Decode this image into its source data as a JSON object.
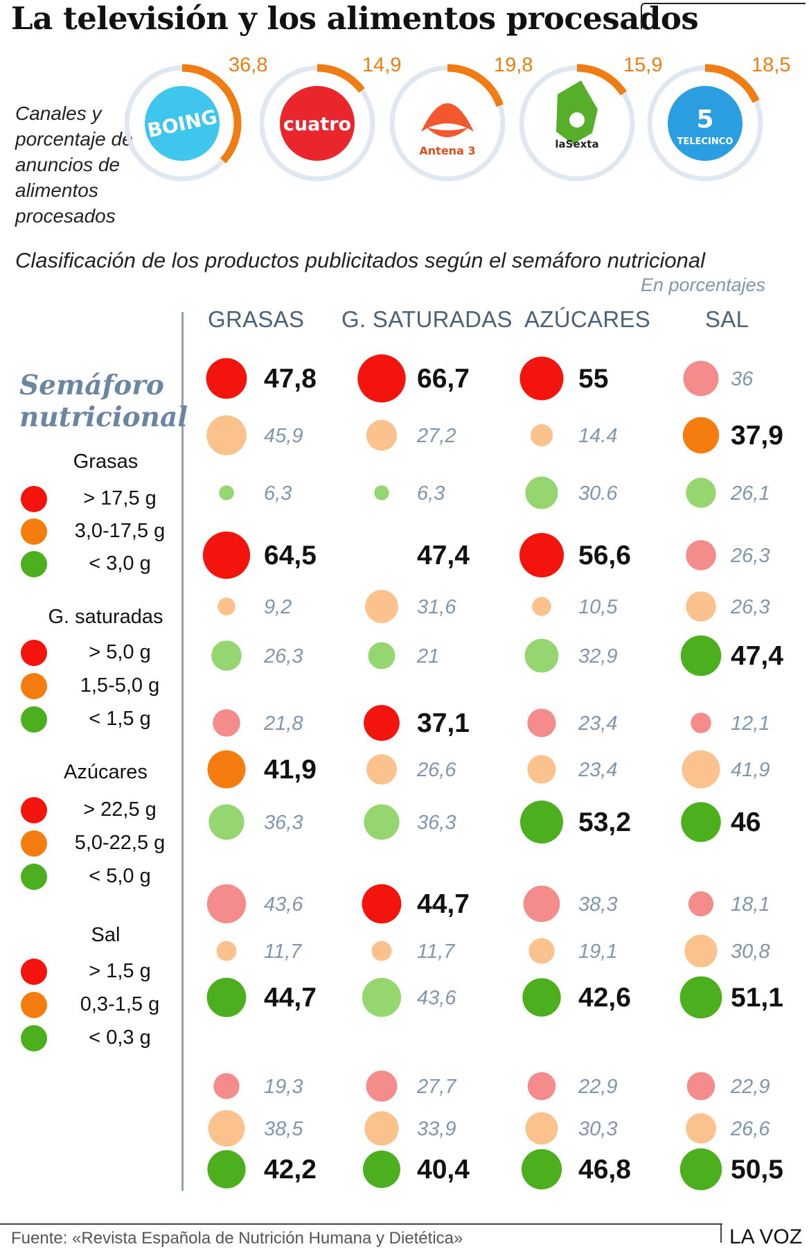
{
  "title": "La televisión y los alimentos procesados",
  "channels_label": "Canales y porcentaje de anuncios de alimentos procesados",
  "channels": [
    {
      "name": "Boing",
      "logo_text": "BOING",
      "value": "36,8",
      "pct": 36.8,
      "color": "#3ec6ec",
      "icon": "boing-logo"
    },
    {
      "name": "Cuatro",
      "logo_text": "cuatro",
      "value": "14,9",
      "pct": 14.9,
      "color": "#e8262b",
      "icon": "cuatro-logo"
    },
    {
      "name": "Antena 3",
      "logo_text": "Antena 3",
      "value": "19,8",
      "pct": 19.8,
      "color": "#f2572d",
      "icon": "antena3-logo"
    },
    {
      "name": "laSexta",
      "logo_text": "laSexta",
      "value": "15,9",
      "pct": 15.9,
      "color": "#57ae2b",
      "icon": "lasexta-logo"
    },
    {
      "name": "Telecinco",
      "logo_text": "TELECINCO",
      "value": "18,5",
      "pct": 18.5,
      "color": "#2a9ee0",
      "icon": "telecinco-logo"
    }
  ],
  "subtitle": "Clasificación de los productos publicitados según el semáforo nutricional",
  "units": "En porcentajes",
  "legend": {
    "title_line1": "Semáforo",
    "title_line2": "nutricional",
    "groups": [
      {
        "name": "Grasas",
        "items": [
          "> 17,5 g",
          "3,0-17,5 g",
          "< 3,0 g"
        ]
      },
      {
        "name": "G. saturadas",
        "items": [
          "> 5,0 g",
          "1,5-5,0 g",
          "< 1,5 g"
        ]
      },
      {
        "name": "Azúcares",
        "items": [
          "> 22,5 g",
          "5,0-22,5 g",
          "< 5,0 g"
        ]
      },
      {
        "name": "Sal",
        "items": [
          "> 1,5 g",
          "0,3-1,5 g",
          "< 0,3 g"
        ]
      }
    ]
  },
  "colors": {
    "red": "#f2140d",
    "orange": "#f57d0f",
    "green": "#4caf1e",
    "red_light": "#f58c8c",
    "orange_light": "#fbc28e",
    "green_light": "#95d671",
    "ring": "#dfe8f0",
    "arc": "#f07d13",
    "axis": "#8ea1b5",
    "muted_text": "#7f96ad"
  },
  "chart_data": {
    "type": "table",
    "columns": [
      "GRASAS",
      "G. SATURADAS",
      "AZÚCARES",
      "SAL"
    ],
    "levels": [
      "red",
      "orange",
      "green"
    ],
    "groups": [
      {
        "channel": "Boing",
        "rows": [
          {
            "level": "red",
            "labels": [
              "47,8",
              "66,7",
              "55",
              "36"
            ],
            "values": [
              47.8,
              66.7,
              55,
              36
            ],
            "highlight": [
              true,
              true,
              true,
              false
            ]
          },
          {
            "level": "orange",
            "labels": [
              "45,9",
              "27,2",
              "14.4",
              "37,9"
            ],
            "values": [
              45.9,
              27.2,
              14.4,
              37.9
            ],
            "highlight": [
              false,
              false,
              false,
              true
            ]
          },
          {
            "level": "green",
            "labels": [
              "6,3",
              "6,3",
              "30.6",
              "26,1"
            ],
            "values": [
              6.3,
              6.3,
              30.6,
              26.1
            ],
            "highlight": [
              false,
              false,
              false,
              false
            ]
          }
        ]
      },
      {
        "channel": "Cuatro",
        "rows": [
          {
            "level": "red",
            "labels": [
              "64,5",
              "47,4",
              "56,6",
              "26,3"
            ],
            "values": [
              64.5,
              47.4,
              56.6,
              26.3
            ],
            "highlight": [
              true,
              true,
              true,
              false
            ],
            "hide_dot": [
              false,
              true,
              false,
              false
            ]
          },
          {
            "level": "orange",
            "labels": [
              "9,2",
              "31,6",
              "10,5",
              "26,3"
            ],
            "values": [
              9.2,
              31.6,
              10.5,
              26.3
            ],
            "highlight": [
              false,
              false,
              false,
              false
            ]
          },
          {
            "level": "green",
            "labels": [
              "26,3",
              "21",
              "32,9",
              "47,4"
            ],
            "values": [
              26.3,
              21,
              32.9,
              47.4
            ],
            "highlight": [
              false,
              false,
              false,
              true
            ]
          }
        ]
      },
      {
        "channel": "Antena 3",
        "rows": [
          {
            "level": "red",
            "labels": [
              "21,8",
              "37,1",
              "23,4",
              "12,1"
            ],
            "values": [
              21.8,
              37.1,
              23.4,
              12.1
            ],
            "highlight": [
              false,
              true,
              false,
              false
            ]
          },
          {
            "level": "orange",
            "labels": [
              "41,9",
              "26,6",
              "23,4",
              "41,9"
            ],
            "values": [
              41.9,
              26.6,
              23.4,
              41.9
            ],
            "highlight": [
              true,
              false,
              false,
              false
            ]
          },
          {
            "level": "green",
            "labels": [
              "36,3",
              "36,3",
              "53,2",
              "46"
            ],
            "values": [
              36.3,
              36.3,
              53.2,
              46
            ],
            "highlight": [
              false,
              false,
              true,
              true
            ]
          }
        ]
      },
      {
        "channel": "laSexta",
        "rows": [
          {
            "level": "red",
            "labels": [
              "43,6",
              "44,7",
              "38,3",
              "18,1"
            ],
            "values": [
              43.6,
              44.7,
              38.3,
              18.1
            ],
            "highlight": [
              false,
              true,
              false,
              false
            ]
          },
          {
            "level": "orange",
            "labels": [
              "11,7",
              "11,7",
              "19,1",
              "30,8"
            ],
            "values": [
              11.7,
              11.7,
              19.1,
              30.8
            ],
            "highlight": [
              false,
              false,
              false,
              false
            ]
          },
          {
            "level": "green",
            "labels": [
              "44,7",
              "43,6",
              "42,6",
              "51,1"
            ],
            "values": [
              44.7,
              43.6,
              42.6,
              51.1
            ],
            "highlight": [
              true,
              false,
              true,
              true
            ]
          }
        ]
      },
      {
        "channel": "Telecinco",
        "rows": [
          {
            "level": "red",
            "labels": [
              "19,3",
              "27,7",
              "22,9",
              "22,9"
            ],
            "values": [
              19.3,
              27.7,
              22.9,
              22.9
            ],
            "highlight": [
              false,
              false,
              false,
              false
            ]
          },
          {
            "level": "orange",
            "labels": [
              "38,5",
              "33,9",
              "30,3",
              "26,6"
            ],
            "values": [
              38.5,
              33.9,
              30.3,
              26.6
            ],
            "highlight": [
              false,
              false,
              false,
              false
            ]
          },
          {
            "level": "green",
            "labels": [
              "42,2",
              "40,4",
              "46,8",
              "50,5"
            ],
            "values": [
              42.2,
              40.4,
              46.8,
              50.5
            ],
            "highlight": [
              true,
              true,
              true,
              true
            ]
          }
        ]
      }
    ]
  },
  "source": "Fuente: «Revista Española de Nutrición Humana y Dietética»",
  "brand": "LA VOZ"
}
